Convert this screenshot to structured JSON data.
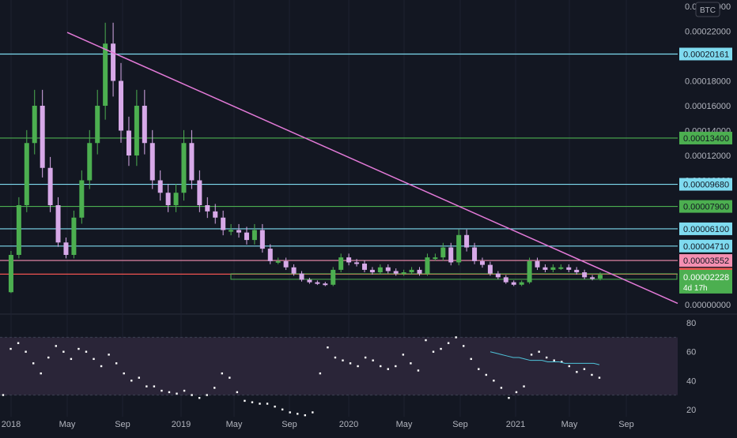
{
  "chart_data": [
    {
      "type": "candlestick",
      "panel": "price",
      "currency_badge": "BTC",
      "y_ticks": [
        "0.00024000",
        "0.00022000",
        "0.00018000",
        "0.00016000",
        "0.00014000",
        "0.00012000",
        "0.00010000",
        "0.00000000"
      ],
      "ylim": [
        0,
        0.00024
      ],
      "x_ticks": [
        "2018",
        "May",
        "Sep",
        "2019",
        "May",
        "Sep",
        "2020",
        "May",
        "Sep",
        "2021",
        "May",
        "Sep"
      ],
      "series": [
        {
          "points": [
            [
              0,
              1e-05
            ],
            [
              1,
              4e-05
            ],
            [
              2,
              8e-05
            ],
            [
              3,
              0.00013
            ],
            [
              4,
              0.00016
            ],
            [
              5,
              0.00011
            ],
            [
              6,
              8e-05
            ],
            [
              7,
              5e-05
            ],
            [
              8,
              4e-05
            ],
            [
              9,
              7e-05
            ],
            [
              10,
              0.0001
            ],
            [
              11,
              0.00013
            ],
            [
              12,
              0.00016
            ],
            [
              13,
              0.00021
            ],
            [
              14,
              0.00018
            ],
            [
              15,
              0.00014
            ],
            [
              16,
              0.00012
            ],
            [
              17,
              0.00016
            ],
            [
              18,
              0.00013
            ],
            [
              19,
              0.0001
            ],
            [
              20,
              9e-05
            ],
            [
              21,
              8e-05
            ],
            [
              22,
              9e-05
            ],
            [
              23,
              0.00013
            ],
            [
              24,
              0.0001
            ],
            [
              25,
              8e-05
            ],
            [
              26,
              7.5e-05
            ],
            [
              27,
              7e-05
            ],
            [
              28,
              6e-05
            ],
            [
              29,
              6e-05
            ],
            [
              30,
              5.8e-05
            ],
            [
              31,
              5.2e-05
            ],
            [
              32,
              6e-05
            ],
            [
              33,
              4.5e-05
            ],
            [
              34,
              3.5e-05
            ],
            [
              35,
              3.5e-05
            ],
            [
              36,
              3e-05
            ],
            [
              37,
              2.5e-05
            ],
            [
              38,
              2e-05
            ],
            [
              39,
              1.8e-05
            ],
            [
              40,
              1.7e-05
            ],
            [
              41,
              1.6e-05
            ],
            [
              42,
              2.8e-05
            ],
            [
              43,
              3.8e-05
            ],
            [
              44,
              3.4e-05
            ],
            [
              45,
              3.3e-05
            ],
            [
              46,
              2.8e-05
            ],
            [
              47,
              2.6e-05
            ],
            [
              48,
              3e-05
            ],
            [
              49,
              2.7e-05
            ],
            [
              50,
              2.5e-05
            ],
            [
              51,
              2.6e-05
            ],
            [
              52,
              2.8e-05
            ],
            [
              53,
              2.5e-05
            ],
            [
              54,
              3.8e-05
            ],
            [
              55,
              3.8e-05
            ],
            [
              56,
              4.6e-05
            ],
            [
              57,
              3.4e-05
            ],
            [
              58,
              5.6e-05
            ],
            [
              59,
              4.6e-05
            ],
            [
              60,
              3.5e-05
            ],
            [
              61,
              3.2e-05
            ],
            [
              62,
              2.5e-05
            ],
            [
              63,
              2.2e-05
            ],
            [
              64,
              1.8e-05
            ],
            [
              65,
              1.6e-05
            ],
            [
              66,
              1.8e-05
            ],
            [
              67,
              3.5e-05
            ],
            [
              68,
              3e-05
            ],
            [
              69,
              2.8e-05
            ],
            [
              70,
              3e-05
            ],
            [
              71,
              3e-05
            ],
            [
              72,
              2.8e-05
            ],
            [
              73,
              2.6e-05
            ],
            [
              74,
              2.2e-05
            ],
            [
              75,
              2.1e-05
            ],
            [
              76,
              2.4e-05
            ]
          ]
        }
      ],
      "horizontal_levels": [
        {
          "value": 0.00020161,
          "label": "0.00020161",
          "color": "#7fdbf0"
        },
        {
          "value": 0.000134,
          "label": "0.00013400",
          "color": "#4caf50"
        },
        {
          "value": 9.68e-05,
          "label": "0.00009680",
          "color": "#7fdbf0"
        },
        {
          "value": 7.9e-05,
          "label": "0.00007900",
          "color": "#4caf50"
        },
        {
          "value": 6.1e-05,
          "label": "0.00006100",
          "color": "#7fdbf0"
        },
        {
          "value": 4.71e-05,
          "label": "0.00004710",
          "color": "#7fdbf0"
        },
        {
          "value": 3.552e-05,
          "label": "0.00003552",
          "color": "#f48fb1"
        },
        {
          "value": 2.452e-05,
          "label": "0.00002452",
          "color": "#ef5350"
        }
      ],
      "current_price": {
        "value": 2.228e-05,
        "label": "0.00002228",
        "countdown": "4d 17h",
        "color": "#4caf50"
      },
      "trendline": {
        "from": [
          0,
          0.000219
        ],
        "to": [
          77,
          1e-06
        ],
        "color": "#e37ad8"
      }
    },
    {
      "type": "line",
      "panel": "oscillator",
      "y_ticks": [
        "80",
        "60",
        "40",
        "20"
      ],
      "ylim": [
        15,
        85
      ],
      "band": [
        30,
        70
      ],
      "series": [
        {
          "values": [
            30,
            62,
            66,
            60,
            52,
            45,
            56,
            64,
            60,
            55,
            62,
            60,
            55,
            50,
            58,
            52,
            45,
            40,
            42,
            36,
            36,
            33,
            32,
            31,
            33,
            30,
            28,
            30,
            35,
            45,
            42,
            32,
            26,
            25,
            24,
            24,
            22,
            20,
            18,
            17,
            16,
            18,
            45,
            63,
            56,
            54,
            52,
            50,
            56,
            54,
            50,
            48,
            50,
            58,
            52,
            47,
            68,
            60,
            62,
            66,
            70,
            64,
            55,
            48,
            44,
            40,
            35,
            28,
            32,
            36,
            58,
            60,
            56,
            54,
            53,
            50,
            46,
            48,
            44,
            42
          ]
        },
        {
          "values": [
            60,
            59,
            58,
            57,
            56,
            56,
            55,
            54,
            54,
            54,
            53,
            53,
            53,
            52,
            52,
            52,
            52,
            52,
            52,
            51
          ],
          "color": "#4fc3d9"
        }
      ]
    }
  ],
  "colors": {
    "background": "#131722",
    "bull": "#4caf50",
    "bear": "#d7a9e8",
    "oscillator_line": "#ffffff",
    "band_fill": "#2a2538"
  }
}
